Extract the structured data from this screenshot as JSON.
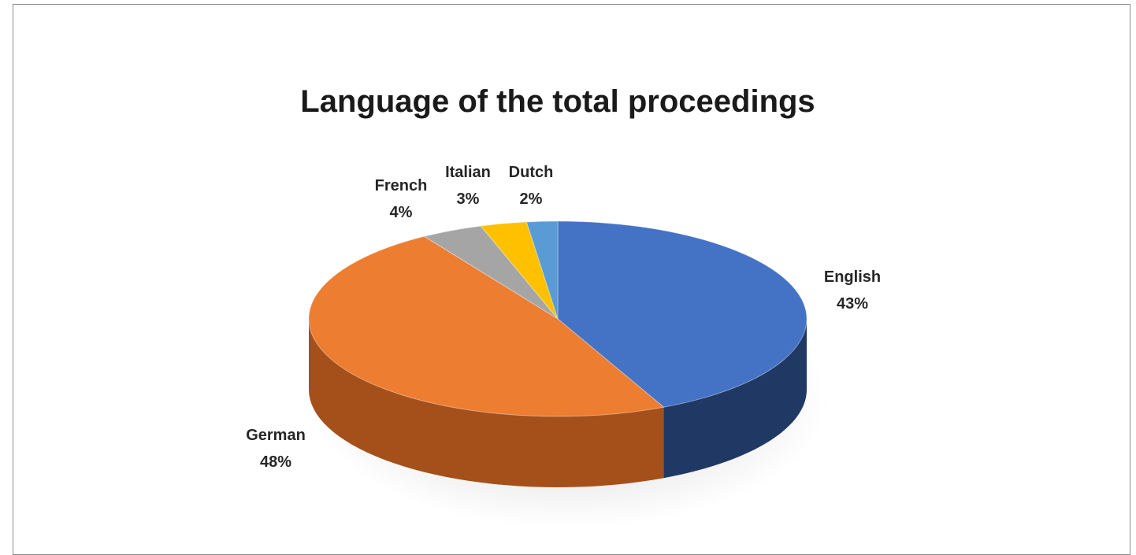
{
  "chart_data": {
    "type": "pie",
    "title": "Language of the total proceedings",
    "slices": [
      {
        "label": "English",
        "value": 43,
        "display": "43%",
        "color": "#4472C4",
        "side": "#203864"
      },
      {
        "label": "German",
        "value": 48,
        "display": "48%",
        "color": "#ED7D31",
        "side": "#A5501A"
      },
      {
        "label": "French",
        "value": 4,
        "display": "4%",
        "color": "#A5A5A5",
        "side": "#6E6E6E"
      },
      {
        "label": "Italian",
        "value": 3,
        "display": "3%",
        "color": "#FFC000",
        "side": "#B38600"
      },
      {
        "label": "Dutch",
        "value": 2,
        "display": "2%",
        "color": "#5B9BD5",
        "side": "#2E5F8C"
      }
    ],
    "style": "3d-pie",
    "legend": "none",
    "data_labels": "outside"
  }
}
